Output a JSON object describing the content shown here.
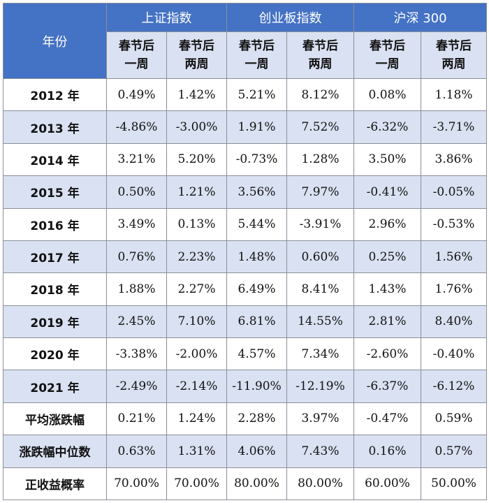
{
  "table": {
    "year_header": "年份",
    "groups": [
      "上证指数",
      "创业板指数",
      "沪深 300"
    ],
    "sub_headers": [
      [
        "春节后",
        "一周"
      ],
      [
        "春节后",
        "两周"
      ],
      [
        "春节后",
        "一周"
      ],
      [
        "春节后",
        "两周"
      ],
      [
        "春节后",
        "一周"
      ],
      [
        "春节后",
        "两周"
      ]
    ],
    "rows": [
      {
        "label": "2012 年",
        "values": [
          "0.49%",
          "1.42%",
          "5.21%",
          "8.12%",
          "0.08%",
          "1.18%"
        ]
      },
      {
        "label": "2013 年",
        "values": [
          "-4.86%",
          "-3.00%",
          "1.91%",
          "7.52%",
          "-6.32%",
          "-3.71%"
        ]
      },
      {
        "label": "2014 年",
        "values": [
          "3.21%",
          "5.20%",
          "-0.73%",
          "1.28%",
          "3.50%",
          "3.86%"
        ]
      },
      {
        "label": "2015 年",
        "values": [
          "0.50%",
          "1.21%",
          "3.56%",
          "7.97%",
          "-0.41%",
          "-0.05%"
        ]
      },
      {
        "label": "2016 年",
        "values": [
          "3.49%",
          "0.13%",
          "5.44%",
          "-3.91%",
          "2.96%",
          "-0.53%"
        ]
      },
      {
        "label": "2017 年",
        "values": [
          "0.76%",
          "2.23%",
          "1.48%",
          "0.60%",
          "0.25%",
          "1.56%"
        ]
      },
      {
        "label": "2018 年",
        "values": [
          "1.88%",
          "2.27%",
          "6.49%",
          "8.41%",
          "1.43%",
          "1.76%"
        ]
      },
      {
        "label": "2019 年",
        "values": [
          "2.45%",
          "7.10%",
          "6.81%",
          "14.55%",
          "2.81%",
          "8.40%"
        ]
      },
      {
        "label": "2020 年",
        "values": [
          "-3.38%",
          "-2.00%",
          "4.57%",
          "7.34%",
          "-2.60%",
          "-0.40%"
        ]
      },
      {
        "label": "2021 年",
        "values": [
          "-2.49%",
          "-2.14%",
          "-11.90%",
          "-12.19%",
          "-6.37%",
          "-6.12%"
        ]
      },
      {
        "label": "平均涨跌幅",
        "values": [
          "0.21%",
          "1.24%",
          "2.28%",
          "3.97%",
          "-0.47%",
          "0.59%"
        ]
      },
      {
        "label": "涨跌幅中位数",
        "values": [
          "0.63%",
          "1.31%",
          "4.06%",
          "7.43%",
          "0.16%",
          "0.57%"
        ]
      },
      {
        "label": "正收益概率",
        "values": [
          "70.00%",
          "70.00%",
          "80.00%",
          "80.00%",
          "60.00%",
          "50.00%"
        ]
      }
    ]
  },
  "colors": {
    "header_bg": "#4472c4",
    "header_text": "#ffffff",
    "band_bg": "#d9e1f2",
    "border": "#8a8f99"
  }
}
